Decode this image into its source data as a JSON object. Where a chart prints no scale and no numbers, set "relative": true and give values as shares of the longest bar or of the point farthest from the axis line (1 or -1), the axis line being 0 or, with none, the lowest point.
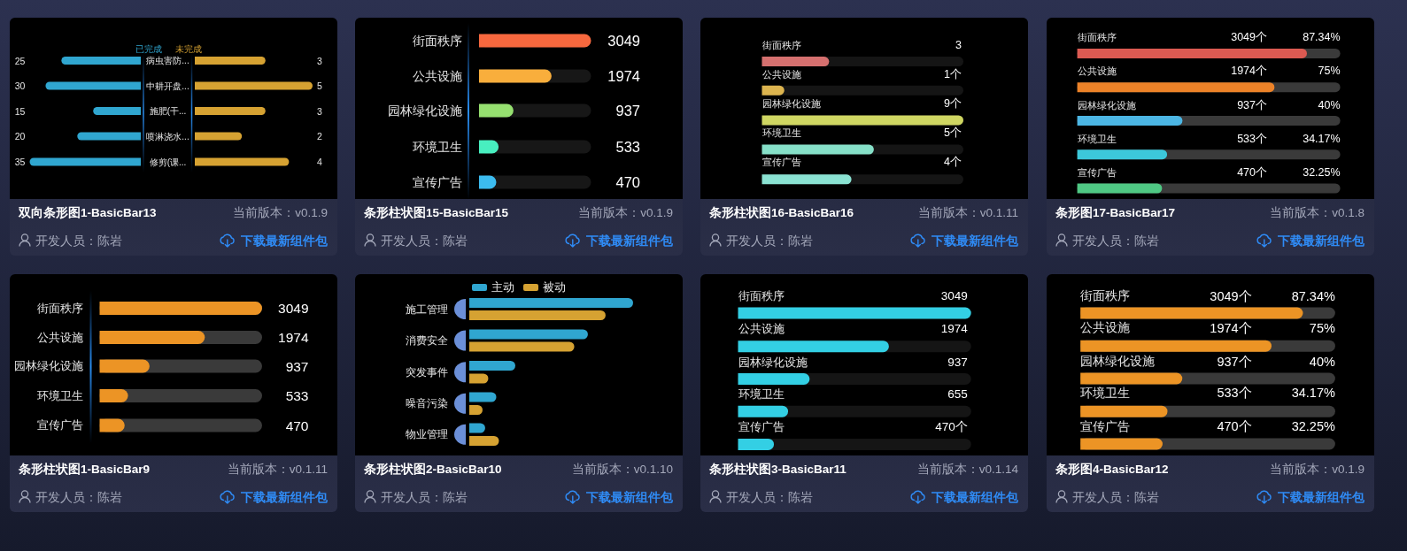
{
  "chart_data": [
    {
      "type": "bar",
      "orientation": "horizontal",
      "title": "双向条形图1-BasicBar13",
      "categories": [
        "病虫害防...",
        "中耕开盘...",
        "施肥(干...",
        "喷淋浇水...",
        "修剪(课..."
      ],
      "series": [
        {
          "name": "已完成",
          "color": "#30a6d0",
          "values": [
            25,
            30,
            15,
            20,
            35
          ]
        }
      ],
      "xlim": [
        35,
        0
      ],
      "data_labels": true,
      "legend": "top",
      "tick_labels": "y",
      "annotations": [
        "当前版本：v0.1.9",
        "开发人员：陈岩",
        "下载最新组件包"
      ]
    },
    {
      "type": "bar",
      "orientation": "horizontal",
      "categories": [
        null,
        null,
        null,
        null,
        null
      ],
      "series": [
        {
          "name": "未完成",
          "color": "#d6a232",
          "values": [
            3,
            5,
            3,
            2,
            4
          ]
        }
      ],
      "xlim": [
        0,
        5
      ],
      "data_labels": true,
      "legend": "top",
      "tick_labels": false
    },
    {
      "type": "bar",
      "orientation": "horizontal",
      "title": "条形柱状图15-BasicBar15",
      "categories": [
        "街面秩序",
        "公共设施",
        "园林绿化设施",
        "环境卫生",
        "宣传广告"
      ],
      "values": [
        3049,
        1974,
        937,
        533,
        470
      ],
      "colors": [
        "#f7683e",
        "#f9ae3c",
        "#96e070",
        "#48efc0",
        "#3cbcf0"
      ],
      "xlim": [
        0,
        3049
      ],
      "data_labels": true,
      "tick_labels": "y",
      "annotations": [
        "当前版本：v0.1.9",
        "开发人员：陈岩",
        "下载最新组件包"
      ]
    },
    {
      "type": "bar",
      "orientation": "horizontal",
      "title": "条形柱状图16-BasicBar16",
      "categories": [
        "街面秩序",
        "公共设施",
        "园林绿化设施",
        "环境卫生",
        "宣传广告"
      ],
      "values": [
        3,
        1,
        9,
        5,
        4
      ],
      "value_labels": [
        "3",
        "1个",
        "9个",
        "5个",
        "4个"
      ],
      "colors": [
        "#d5706f",
        "#dcb44f",
        "#cfd662",
        "#86e0c8",
        "#8ae2d2"
      ],
      "xlim": [
        0,
        9
      ],
      "tick_labels": "y",
      "annotations": [
        "当前版本：v0.1.11",
        "开发人员：陈岩",
        "下载最新组件包"
      ]
    },
    {
      "type": "bar",
      "orientation": "horizontal",
      "title": "条形图17-BasicBar17",
      "categories": [
        "街面秩序",
        "公共设施",
        "园林绿化设施",
        "环境卫生",
        "宣传广告"
      ],
      "values": [
        87.34,
        75,
        40,
        34.17,
        32.25
      ],
      "value_labels": [
        "87.34%",
        "75%",
        "40%",
        "34.17%",
        "32.25%"
      ],
      "colors": [
        "#dc5a52",
        "#ec8228",
        "#4cb6e4",
        "#3cc8da",
        "#4fc884"
      ],
      "xlim": [
        0,
        100
      ],
      "tick_labels": "y",
      "annotations": [
        "3049个",
        "1974个",
        "937个",
        "533个",
        "470个",
        "当前版本：v0.1.8",
        "开发人员：陈岩",
        "下载最新组件包"
      ]
    },
    {
      "type": "bar",
      "orientation": "horizontal",
      "title": "条形柱状图1-BasicBar9",
      "categories": [
        "街面秩序",
        "公共设施",
        "园林绿化设施",
        "环境卫生",
        "宣传广告"
      ],
      "values": [
        3049,
        1974,
        937,
        533,
        470
      ],
      "color": "#ec9425",
      "xlim": [
        0,
        3049
      ],
      "data_labels": true,
      "tick_labels": "y",
      "annotations": [
        "当前版本：v0.1.11",
        "开发人员：陈岩",
        "下载最新组件包"
      ]
    },
    {
      "type": "bar",
      "orientation": "horizontal",
      "title": "条形柱状图2-BasicBar10",
      "categories": [
        "施工管理",
        "消费安全",
        "突发事件",
        "噪音污染",
        "物业管理"
      ],
      "series": [
        {
          "name": "主动",
          "color": "#30a6d0",
          "values": [
            1,
            0.724,
            0.281,
            0.165,
            0.097
          ]
        },
        {
          "name": "被动",
          "color": "#d6a232",
          "values": [
            0.832,
            0.641,
            0.116,
            0.081,
            0.181
          ]
        }
      ],
      "relative": true,
      "legend": "top",
      "tick_labels": "y",
      "annotations": [
        "当前版本：v0.1.10",
        "开发人员：陈岩",
        "下载最新组件包"
      ]
    },
    {
      "type": "bar",
      "orientation": "horizontal",
      "title": "条形柱状图3-BasicBar11",
      "categories": [
        "街面秩序",
        "公共设施",
        "园林绿化设施",
        "环境卫生",
        "宣传广告"
      ],
      "values": [
        3049,
        1974,
        937,
        655,
        470
      ],
      "value_labels": [
        "3049",
        "1974",
        "937",
        "655",
        "470个"
      ],
      "color": "#33cfe4",
      "xlim": [
        0,
        3049
      ],
      "tick_labels": "y",
      "annotations": [
        "当前版本：v0.1.14",
        "开发人员：陈岩",
        "下载最新组件包"
      ]
    },
    {
      "type": "bar",
      "orientation": "horizontal",
      "title": "条形图4-BasicBar12",
      "categories": [
        "街面秩序",
        "公共设施",
        "园林绿化设施",
        "环境卫生",
        "宣传广告"
      ],
      "values": [
        87.34,
        75,
        40,
        34.17,
        32.25
      ],
      "value_labels": [
        "87.34%",
        "75%",
        "40%",
        "34.17%",
        "32.25%"
      ],
      "color": "#ec9425",
      "xlim": [
        0,
        100
      ],
      "tick_labels": "y",
      "annotations": [
        "3049个",
        "1974个",
        "937个",
        "533个",
        "470个",
        "当前版本：v0.1.9",
        "开发人员：陈岩",
        "下载最新组件包"
      ]
    }
  ]
}
